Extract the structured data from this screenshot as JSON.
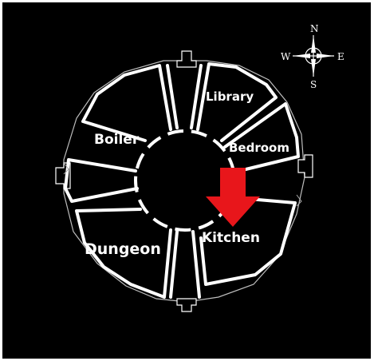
{
  "colors": {
    "background": "#000000",
    "frame": "#ffffff",
    "walls": "#ffffff",
    "room_text": "#ffffff",
    "marker": "#e8161b"
  },
  "rooms": {
    "library": "Library",
    "bedroom": "Bedroom",
    "boiler": "Boiler",
    "dungeon": "Dungeon",
    "kitchen": "Kitchen"
  },
  "compass": {
    "north": "N",
    "south": "S",
    "east": "E",
    "west": "W"
  },
  "marker": {
    "icon": "down-arrow-icon",
    "room": "Kitchen"
  }
}
